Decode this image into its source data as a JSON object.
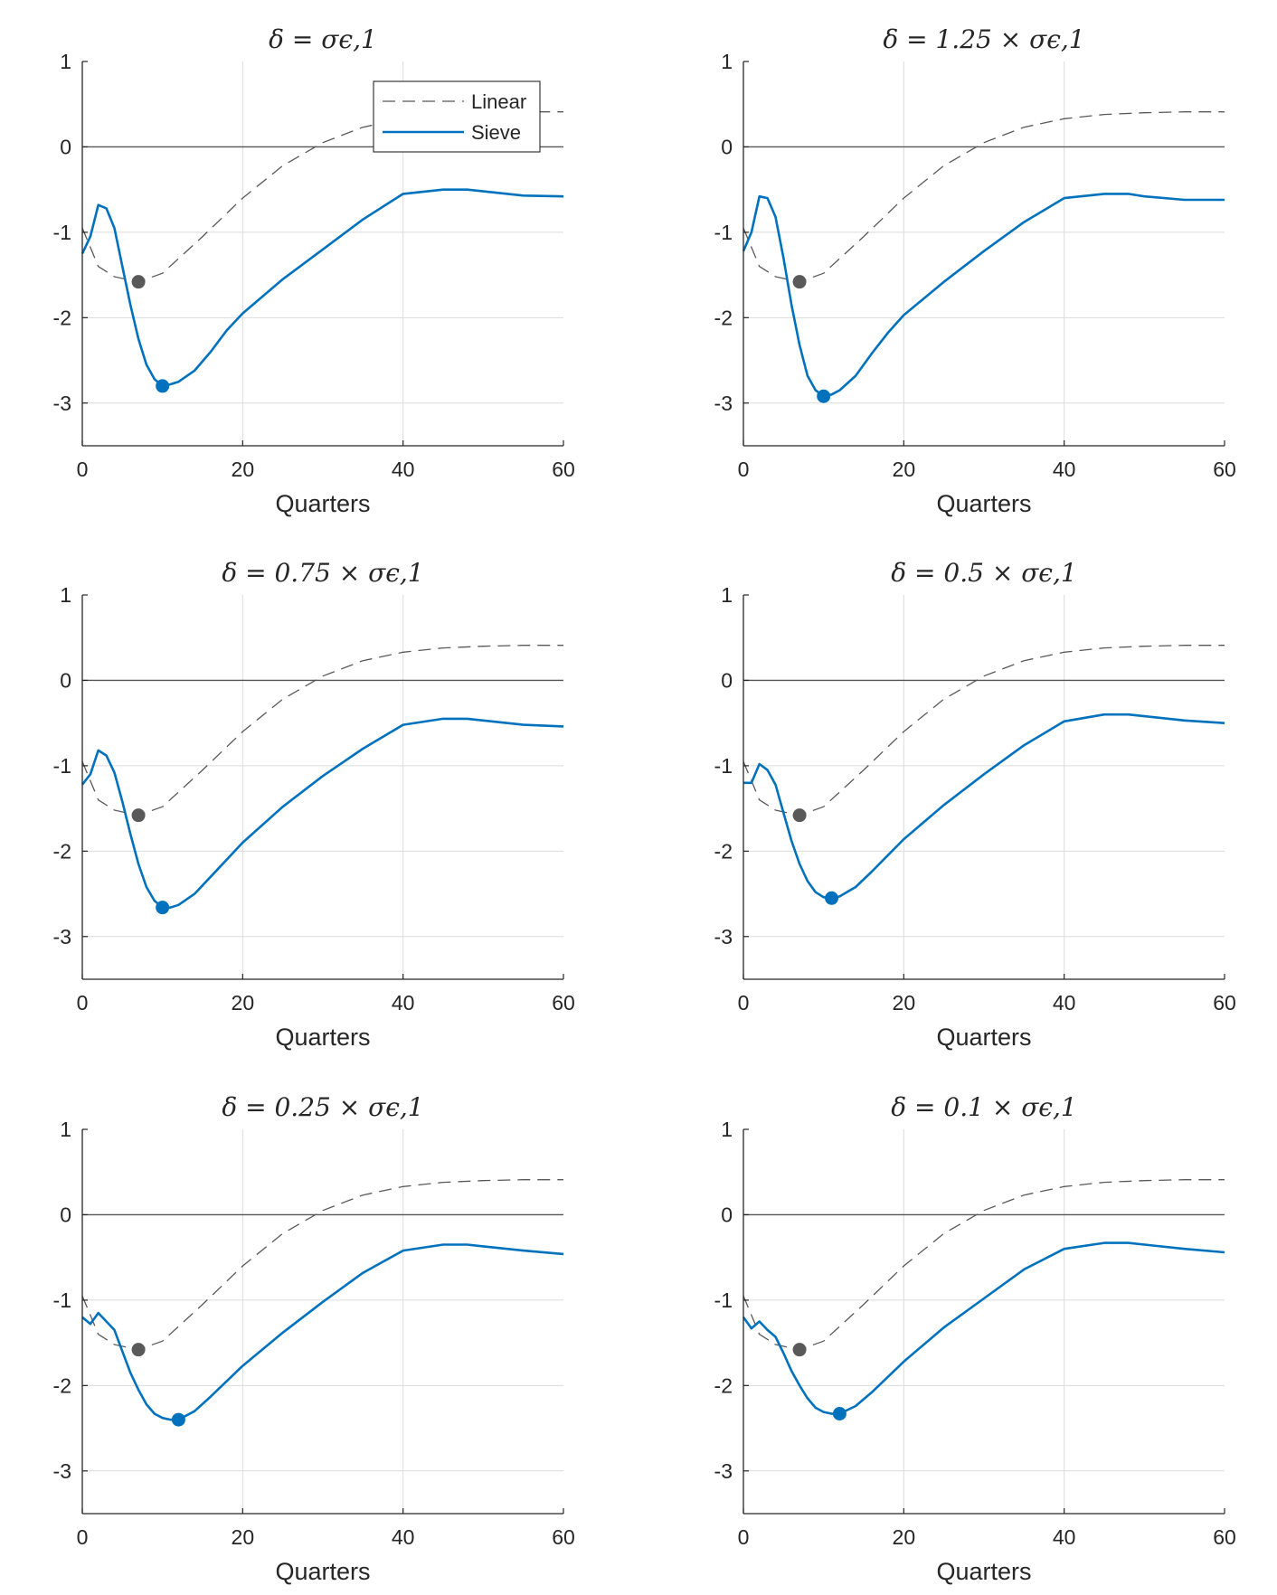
{
  "colors": {
    "linear": "#595959",
    "sieve": "#0072BD",
    "grid": "#dcdcdc",
    "axis": "#262626",
    "zero_line": "#555555"
  },
  "legend": {
    "linear_label": "Linear",
    "sieve_label": "Sieve"
  },
  "chart_data": [
    {
      "type": "line",
      "title": "δ = σϵ,1",
      "xlabel": "Quarters",
      "ylabel": "",
      "xlim": [
        0,
        60
      ],
      "ylim": [
        -3.5,
        1
      ],
      "xticks": [
        "0",
        "20",
        "40",
        "60"
      ],
      "yticks": [
        "1",
        "0",
        "-1",
        "-2",
        "-3"
      ],
      "grid": true,
      "legend": true,
      "series": [
        {
          "name": "Linear",
          "x": [
            0,
            2,
            4,
            7,
            10,
            15,
            20,
            25,
            30,
            35,
            40,
            45,
            50,
            55,
            60
          ],
          "values": [
            -0.95,
            -1.4,
            -1.52,
            -1.58,
            -1.48,
            -1.05,
            -0.6,
            -0.22,
            0.05,
            0.23,
            0.33,
            0.38,
            0.4,
            0.41,
            0.41
          ]
        },
        {
          "name": "Sieve",
          "x": [
            0,
            1,
            2,
            3,
            4,
            5,
            6,
            7,
            8,
            9,
            10,
            11,
            12,
            14,
            16,
            18,
            20,
            25,
            30,
            35,
            40,
            45,
            48,
            50,
            55,
            60
          ],
          "values": [
            -1.25,
            -1.05,
            -0.68,
            -0.72,
            -0.95,
            -1.4,
            -1.85,
            -2.25,
            -2.55,
            -2.72,
            -2.8,
            -2.78,
            -2.75,
            -2.62,
            -2.4,
            -2.15,
            -1.95,
            -1.55,
            -1.2,
            -0.85,
            -0.55,
            -0.5,
            -0.5,
            -0.52,
            -0.57,
            -0.58
          ]
        }
      ],
      "markers": [
        {
          "series": "Linear",
          "x": 7,
          "y": -1.58
        },
        {
          "series": "Sieve",
          "x": 10,
          "y": -2.8
        }
      ]
    },
    {
      "type": "line",
      "title": "δ = 1.25 × σϵ,1",
      "xlabel": "Quarters",
      "ylabel": "",
      "xlim": [
        0,
        60
      ],
      "ylim": [
        -3.5,
        1
      ],
      "xticks": [
        "0",
        "20",
        "40",
        "60"
      ],
      "yticks": [
        "1",
        "0",
        "-1",
        "-2",
        "-3"
      ],
      "grid": true,
      "legend": false,
      "series": [
        {
          "name": "Linear",
          "x": [
            0,
            2,
            4,
            7,
            10,
            15,
            20,
            25,
            30,
            35,
            40,
            45,
            50,
            55,
            60
          ],
          "values": [
            -0.95,
            -1.4,
            -1.52,
            -1.58,
            -1.48,
            -1.05,
            -0.6,
            -0.22,
            0.05,
            0.23,
            0.33,
            0.38,
            0.4,
            0.41,
            0.41
          ]
        },
        {
          "name": "Sieve",
          "x": [
            0,
            1,
            2,
            3,
            4,
            5,
            6,
            7,
            8,
            9,
            10,
            11,
            12,
            14,
            16,
            18,
            20,
            25,
            30,
            35,
            40,
            45,
            48,
            50,
            55,
            60
          ],
          "values": [
            -1.22,
            -1.0,
            -0.58,
            -0.6,
            -0.82,
            -1.3,
            -1.85,
            -2.32,
            -2.68,
            -2.85,
            -2.92,
            -2.9,
            -2.85,
            -2.68,
            -2.42,
            -2.18,
            -1.97,
            -1.58,
            -1.22,
            -0.88,
            -0.6,
            -0.55,
            -0.55,
            -0.58,
            -0.62,
            -0.62
          ]
        }
      ],
      "markers": [
        {
          "series": "Linear",
          "x": 7,
          "y": -1.58
        },
        {
          "series": "Sieve",
          "x": 10,
          "y": -2.92
        }
      ]
    },
    {
      "type": "line",
      "title": "δ = 0.75 × σϵ,1",
      "xlabel": "Quarters",
      "ylabel": "",
      "xlim": [
        0,
        60
      ],
      "ylim": [
        -3.5,
        1
      ],
      "xticks": [
        "0",
        "20",
        "40",
        "60"
      ],
      "yticks": [
        "1",
        "0",
        "-1",
        "-2",
        "-3"
      ],
      "grid": true,
      "legend": false,
      "series": [
        {
          "name": "Linear",
          "x": [
            0,
            2,
            4,
            7,
            10,
            15,
            20,
            25,
            30,
            35,
            40,
            45,
            50,
            55,
            60
          ],
          "values": [
            -0.95,
            -1.4,
            -1.52,
            -1.58,
            -1.48,
            -1.05,
            -0.6,
            -0.22,
            0.05,
            0.23,
            0.33,
            0.38,
            0.4,
            0.41,
            0.41
          ]
        },
        {
          "name": "Sieve",
          "x": [
            0,
            1,
            2,
            3,
            4,
            5,
            6,
            7,
            8,
            9,
            10,
            11,
            12,
            14,
            16,
            18,
            20,
            25,
            30,
            35,
            40,
            45,
            48,
            50,
            55,
            60
          ],
          "values": [
            -1.22,
            -1.1,
            -0.82,
            -0.88,
            -1.08,
            -1.42,
            -1.8,
            -2.15,
            -2.42,
            -2.58,
            -2.66,
            -2.66,
            -2.63,
            -2.5,
            -2.3,
            -2.1,
            -1.9,
            -1.48,
            -1.12,
            -0.8,
            -0.52,
            -0.45,
            -0.45,
            -0.47,
            -0.52,
            -0.54
          ]
        }
      ],
      "markers": [
        {
          "series": "Linear",
          "x": 7,
          "y": -1.58
        },
        {
          "series": "Sieve",
          "x": 10,
          "y": -2.66
        }
      ]
    },
    {
      "type": "line",
      "title": "δ = 0.5 × σϵ,1",
      "xlabel": "Quarters",
      "ylabel": "",
      "xlim": [
        0,
        60
      ],
      "ylim": [
        -3.5,
        1
      ],
      "xticks": [
        "0",
        "20",
        "40",
        "60"
      ],
      "yticks": [
        "1",
        "0",
        "-1",
        "-2",
        "-3"
      ],
      "grid": true,
      "legend": false,
      "series": [
        {
          "name": "Linear",
          "x": [
            0,
            2,
            4,
            7,
            10,
            15,
            20,
            25,
            30,
            35,
            40,
            45,
            50,
            55,
            60
          ],
          "values": [
            -0.95,
            -1.4,
            -1.52,
            -1.58,
            -1.48,
            -1.05,
            -0.6,
            -0.22,
            0.05,
            0.23,
            0.33,
            0.38,
            0.4,
            0.41,
            0.41
          ]
        },
        {
          "name": "Sieve",
          "x": [
            0,
            1,
            2,
            3,
            4,
            5,
            6,
            7,
            8,
            9,
            10,
            11,
            12,
            14,
            16,
            18,
            20,
            25,
            30,
            35,
            40,
            45,
            48,
            50,
            55,
            60
          ],
          "values": [
            -1.2,
            -1.2,
            -0.98,
            -1.05,
            -1.22,
            -1.55,
            -1.88,
            -2.15,
            -2.35,
            -2.48,
            -2.54,
            -2.55,
            -2.53,
            -2.42,
            -2.24,
            -2.05,
            -1.86,
            -1.46,
            -1.1,
            -0.76,
            -0.48,
            -0.4,
            -0.4,
            -0.42,
            -0.47,
            -0.5
          ]
        }
      ],
      "markers": [
        {
          "series": "Linear",
          "x": 7,
          "y": -1.58
        },
        {
          "series": "Sieve",
          "x": 11,
          "y": -2.55
        }
      ]
    },
    {
      "type": "line",
      "title": "δ = 0.25 × σϵ,1",
      "xlabel": "Quarters",
      "ylabel": "",
      "xlim": [
        0,
        60
      ],
      "ylim": [
        -3.5,
        1
      ],
      "xticks": [
        "0",
        "20",
        "40",
        "60"
      ],
      "yticks": [
        "1",
        "0",
        "-1",
        "-2",
        "-3"
      ],
      "grid": true,
      "legend": false,
      "series": [
        {
          "name": "Linear",
          "x": [
            0,
            2,
            4,
            7,
            10,
            15,
            20,
            25,
            30,
            35,
            40,
            45,
            50,
            55,
            60
          ],
          "values": [
            -0.95,
            -1.4,
            -1.52,
            -1.58,
            -1.48,
            -1.05,
            -0.6,
            -0.22,
            0.05,
            0.23,
            0.33,
            0.38,
            0.4,
            0.41,
            0.41
          ]
        },
        {
          "name": "Sieve",
          "x": [
            0,
            1,
            2,
            3,
            4,
            5,
            6,
            7,
            8,
            9,
            10,
            11,
            12,
            14,
            16,
            18,
            20,
            25,
            30,
            35,
            40,
            45,
            48,
            50,
            55,
            60
          ],
          "values": [
            -1.2,
            -1.28,
            -1.15,
            -1.25,
            -1.35,
            -1.6,
            -1.85,
            -2.05,
            -2.22,
            -2.33,
            -2.38,
            -2.4,
            -2.4,
            -2.3,
            -2.13,
            -1.95,
            -1.77,
            -1.38,
            -1.02,
            -0.68,
            -0.42,
            -0.35,
            -0.35,
            -0.37,
            -0.42,
            -0.46
          ]
        }
      ],
      "markers": [
        {
          "series": "Linear",
          "x": 7,
          "y": -1.58
        },
        {
          "series": "Sieve",
          "x": 12,
          "y": -2.4
        }
      ]
    },
    {
      "type": "line",
      "title": "δ = 0.1 × σϵ,1",
      "xlabel": "Quarters",
      "ylabel": "",
      "xlim": [
        0,
        60
      ],
      "ylim": [
        -3.5,
        1
      ],
      "xticks": [
        "0",
        "20",
        "40",
        "60"
      ],
      "yticks": [
        "1",
        "0",
        "-1",
        "-2",
        "-3"
      ],
      "grid": true,
      "legend": false,
      "series": [
        {
          "name": "Linear",
          "x": [
            0,
            2,
            4,
            7,
            10,
            15,
            20,
            25,
            30,
            35,
            40,
            45,
            50,
            55,
            60
          ],
          "values": [
            -0.95,
            -1.4,
            -1.52,
            -1.58,
            -1.48,
            -1.05,
            -0.6,
            -0.22,
            0.05,
            0.23,
            0.33,
            0.38,
            0.4,
            0.41,
            0.41
          ]
        },
        {
          "name": "Sieve",
          "x": [
            0,
            1,
            2,
            3,
            4,
            5,
            6,
            7,
            8,
            9,
            10,
            11,
            12,
            14,
            16,
            18,
            20,
            25,
            30,
            35,
            40,
            45,
            48,
            50,
            55,
            60
          ],
          "values": [
            -1.2,
            -1.33,
            -1.25,
            -1.35,
            -1.43,
            -1.62,
            -1.83,
            -2.0,
            -2.15,
            -2.26,
            -2.31,
            -2.33,
            -2.33,
            -2.24,
            -2.08,
            -1.9,
            -1.72,
            -1.32,
            -0.98,
            -0.64,
            -0.4,
            -0.33,
            -0.33,
            -0.35,
            -0.4,
            -0.44
          ]
        }
      ],
      "markers": [
        {
          "series": "Linear",
          "x": 7,
          "y": -1.58
        },
        {
          "series": "Sieve",
          "x": 12,
          "y": -2.33
        }
      ]
    }
  ]
}
